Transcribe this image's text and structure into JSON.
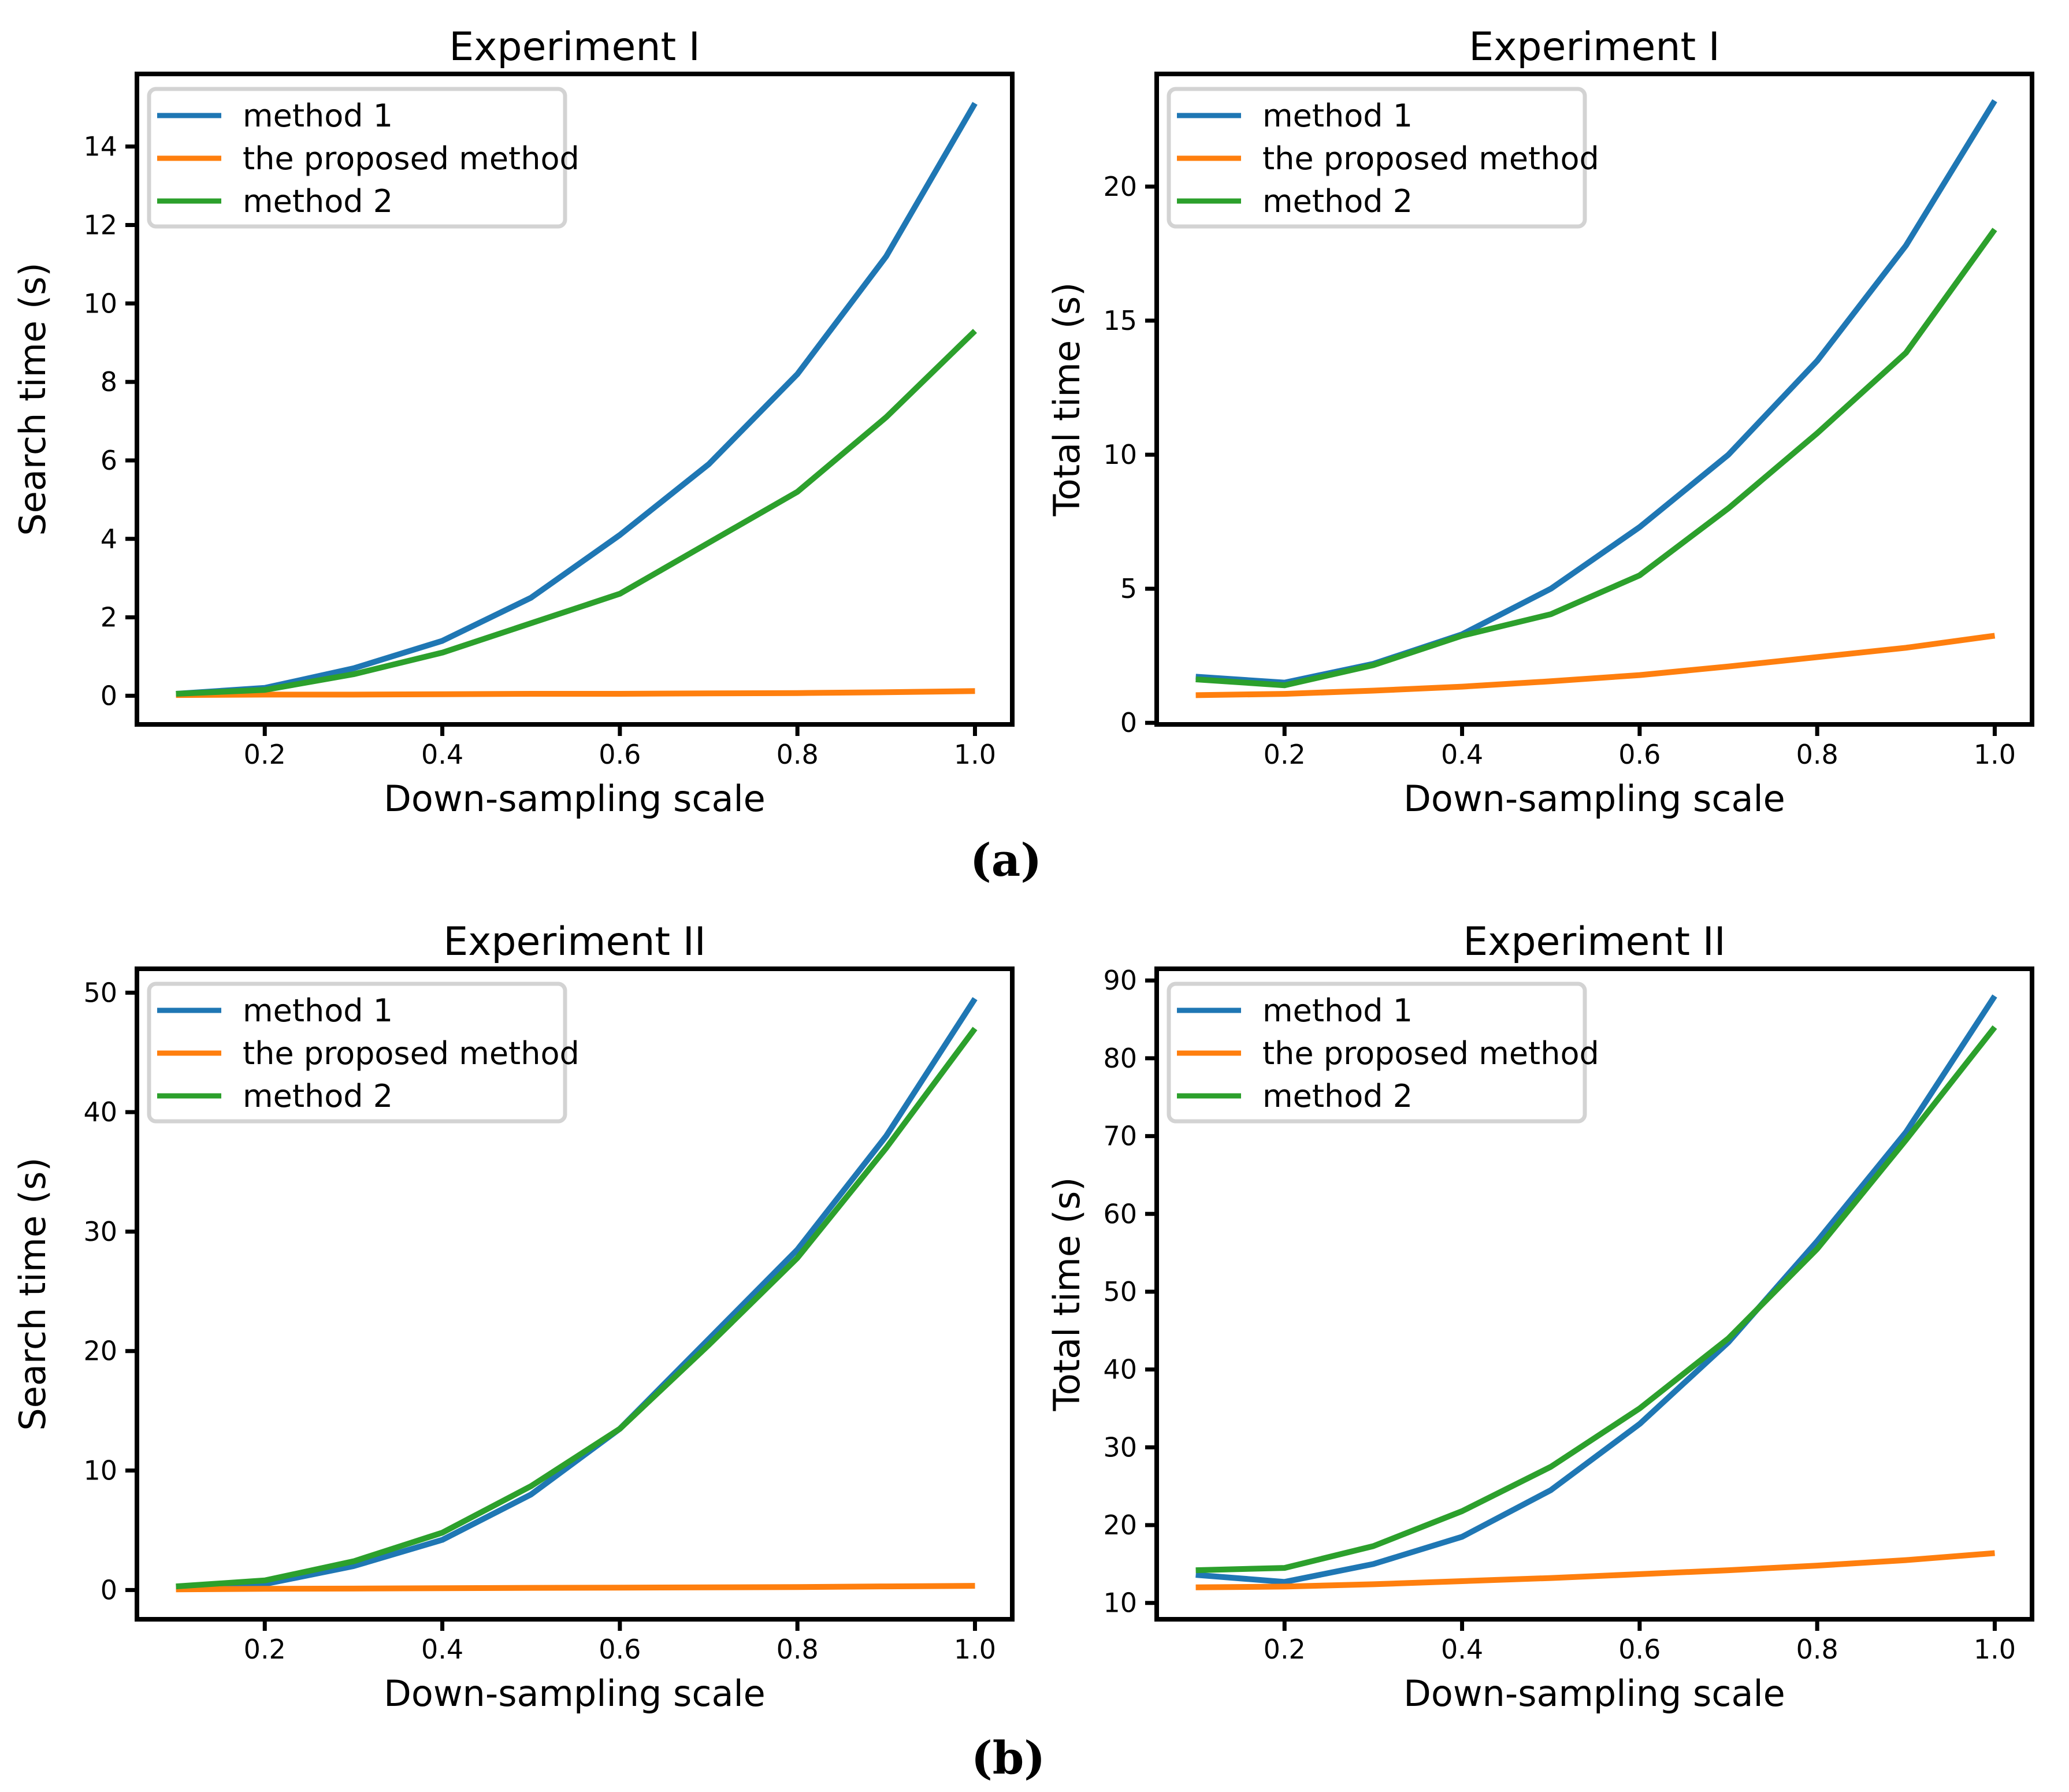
{
  "figure": {
    "label_a": "(a)",
    "label_b": "(b)",
    "background_color": "#ffffff",
    "axis_color": "#000000",
    "legend_border_color": "#d3d3d3"
  },
  "chart_data": [
    {
      "type": "line",
      "title": "Experiment I",
      "xlabel": "Down-sampling scale",
      "ylabel": "Search time (s)",
      "x": [
        0.1,
        0.2,
        0.3,
        0.4,
        0.5,
        0.6,
        0.7,
        0.8,
        0.9,
        1.0
      ],
      "xticks": [
        "0.2",
        "0.4",
        "0.6",
        "0.8",
        "1.0"
      ],
      "xtick_values": [
        0.2,
        0.4,
        0.6,
        0.8,
        1.0
      ],
      "xlim": [
        0.056,
        1.042
      ],
      "yticks": [
        0,
        2,
        4,
        6,
        8,
        10,
        12,
        14
      ],
      "ylim": [
        -0.73,
        15.85
      ],
      "grid": false,
      "legend_position": "upper left",
      "series": [
        {
          "name": "method 1",
          "color": "#1f77b4",
          "values": [
            0.05,
            0.2,
            0.7,
            1.4,
            2.5,
            4.1,
            5.9,
            8.2,
            11.2,
            15.1
          ]
        },
        {
          "name": "the proposed method",
          "color": "#ff7f0e",
          "values": [
            0.02,
            0.03,
            0.03,
            0.04,
            0.05,
            0.05,
            0.06,
            0.07,
            0.09,
            0.12
          ]
        },
        {
          "name": "method 2",
          "color": "#2ca02c",
          "values": [
            0.05,
            0.15,
            0.55,
            1.1,
            1.85,
            2.6,
            3.9,
            5.2,
            7.1,
            9.3
          ]
        }
      ]
    },
    {
      "type": "line",
      "title": "Experiment I",
      "xlabel": "Down-sampling scale",
      "ylabel": "Total time (s)",
      "x": [
        0.1,
        0.2,
        0.3,
        0.4,
        0.5,
        0.6,
        0.7,
        0.8,
        0.9,
        1.0
      ],
      "xticks": [
        "0.2",
        "0.4",
        "0.6",
        "0.8",
        "1.0"
      ],
      "xtick_values": [
        0.2,
        0.4,
        0.6,
        0.8,
        1.0
      ],
      "xlim": [
        0.056,
        1.042
      ],
      "yticks": [
        0,
        5,
        10,
        15,
        20
      ],
      "ylim": [
        -0.06,
        24.2
      ],
      "grid": false,
      "legend_position": "upper left",
      "series": [
        {
          "name": "method 1",
          "color": "#1f77b4",
          "values": [
            1.72,
            1.5,
            2.2,
            3.3,
            5.0,
            7.3,
            10.0,
            13.5,
            17.8,
            23.2
          ]
        },
        {
          "name": "the proposed method",
          "color": "#ff7f0e",
          "values": [
            1.03,
            1.08,
            1.2,
            1.35,
            1.55,
            1.78,
            2.1,
            2.45,
            2.8,
            3.25
          ]
        },
        {
          "name": "method 2",
          "color": "#2ca02c",
          "values": [
            1.62,
            1.4,
            2.15,
            3.25,
            4.05,
            5.5,
            8.0,
            10.8,
            13.8,
            18.4
          ]
        }
      ]
    },
    {
      "type": "line",
      "title": "Experiment II",
      "xlabel": "Down-sampling scale",
      "ylabel": "Search time (s)",
      "x": [
        0.1,
        0.2,
        0.3,
        0.4,
        0.5,
        0.6,
        0.7,
        0.8,
        0.9,
        1.0
      ],
      "xticks": [
        "0.2",
        "0.4",
        "0.6",
        "0.8",
        "1.0"
      ],
      "xtick_values": [
        0.2,
        0.4,
        0.6,
        0.8,
        1.0
      ],
      "xlim": [
        0.056,
        1.042
      ],
      "yticks": [
        0,
        10,
        20,
        30,
        40,
        50
      ],
      "ylim": [
        -2.45,
        52.0
      ],
      "grid": false,
      "legend_position": "upper left",
      "series": [
        {
          "name": "method 1",
          "color": "#1f77b4",
          "values": [
            0.2,
            0.5,
            2.0,
            4.2,
            8.0,
            13.5,
            21.0,
            28.5,
            38.0,
            49.5
          ]
        },
        {
          "name": "the proposed method",
          "color": "#ff7f0e",
          "values": [
            0.05,
            0.1,
            0.12,
            0.15,
            0.18,
            0.2,
            0.22,
            0.25,
            0.3,
            0.35
          ]
        },
        {
          "name": "method 2",
          "color": "#2ca02c",
          "values": [
            0.3,
            0.8,
            2.4,
            4.8,
            8.7,
            13.5,
            20.5,
            27.8,
            37.0,
            47.0
          ]
        }
      ]
    },
    {
      "type": "line",
      "title": "Experiment II",
      "xlabel": "Down-sampling scale",
      "ylabel": "Total time (s)",
      "x": [
        0.1,
        0.2,
        0.3,
        0.4,
        0.5,
        0.6,
        0.7,
        0.8,
        0.9,
        1.0
      ],
      "xticks": [
        "0.2",
        "0.4",
        "0.6",
        "0.8",
        "1.0"
      ],
      "xtick_values": [
        0.2,
        0.4,
        0.6,
        0.8,
        1.0
      ],
      "xlim": [
        0.056,
        1.042
      ],
      "yticks": [
        10,
        20,
        30,
        40,
        50,
        60,
        70,
        80,
        90
      ],
      "ylim": [
        7.9,
        91.5
      ],
      "grid": false,
      "legend_position": "upper left",
      "series": [
        {
          "name": "method 1",
          "color": "#1f77b4",
          "values": [
            13.6,
            12.7,
            15.0,
            18.5,
            24.5,
            33.0,
            43.5,
            56.5,
            70.5,
            88.0
          ]
        },
        {
          "name": "the proposed method",
          "color": "#ff7f0e",
          "values": [
            12.0,
            12.1,
            12.4,
            12.8,
            13.2,
            13.7,
            14.2,
            14.8,
            15.5,
            16.4
          ]
        },
        {
          "name": "method 2",
          "color": "#2ca02c",
          "values": [
            14.2,
            14.5,
            17.3,
            21.8,
            27.5,
            35.0,
            44.0,
            55.5,
            69.5,
            84.0
          ]
        }
      ]
    }
  ]
}
